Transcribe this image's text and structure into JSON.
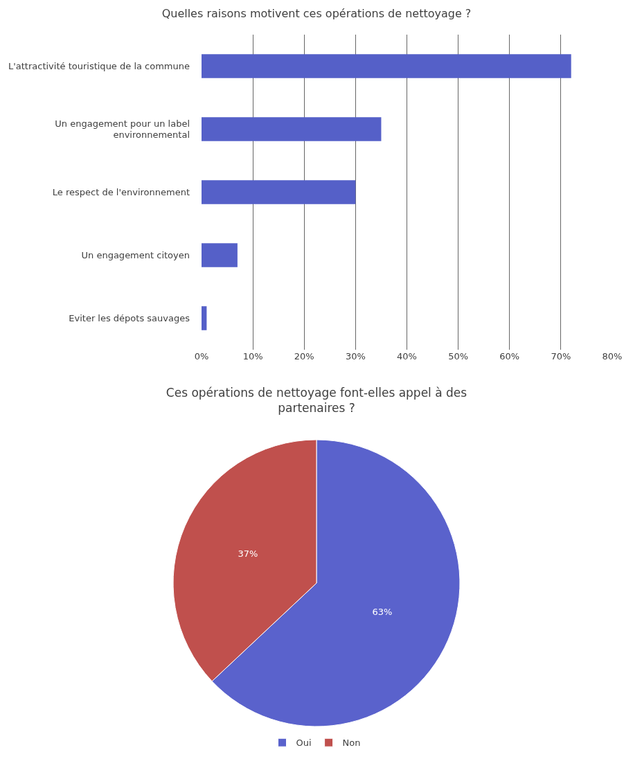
{
  "chart_data": [
    {
      "type": "bar",
      "orientation": "horizontal",
      "title": "Quelles raisons motivent ces opérations de nettoyage ?",
      "categories": [
        "L'attractivité touristique de la commune",
        "Un engagement pour un label environnemental",
        "Le respect de l'environnement",
        "Un engagement citoyen",
        "Eviter les dépots sauvages"
      ],
      "values": [
        72,
        35,
        30,
        7,
        1
      ],
      "color": "#5560c8",
      "xlim": [
        0,
        80
      ],
      "xticks": [
        {
          "value": 0,
          "label": "0%"
        },
        {
          "value": 10,
          "label": "10%"
        },
        {
          "value": 20,
          "label": "20%"
        },
        {
          "value": 30,
          "label": "30%"
        },
        {
          "value": 40,
          "label": "40%"
        },
        {
          "value": 50,
          "label": "50%"
        },
        {
          "value": 60,
          "label": "60%"
        },
        {
          "value": 70,
          "label": "70%"
        },
        {
          "value": 80,
          "label": "80%"
        }
      ],
      "grid": "x"
    },
    {
      "type": "pie",
      "title": "Ces opérations de nettoyage font-elles appel à des partenaires ?",
      "categories": [
        "Oui",
        "Non"
      ],
      "values": [
        63,
        37
      ],
      "colors": [
        "#5a62cc",
        "#c0504d"
      ],
      "value_labels": [
        "63%",
        "37%"
      ],
      "legend": "bottom"
    }
  ]
}
